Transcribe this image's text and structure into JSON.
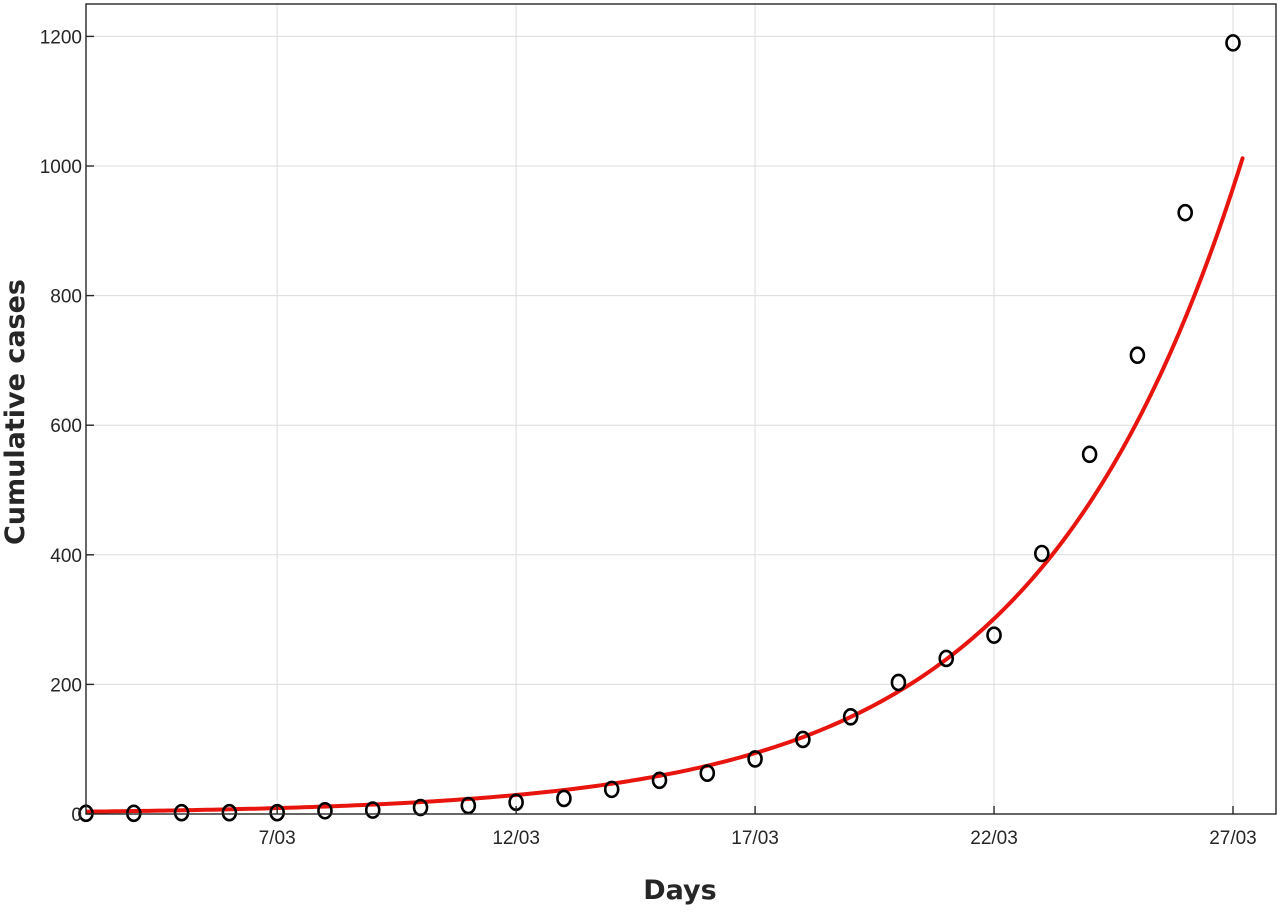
{
  "chart_data": {
    "type": "scatter",
    "title": "",
    "xlabel": "Days",
    "ylabel": "Cumulative cases",
    "x_tick_labels": [
      "7/03",
      "12/03",
      "17/03",
      "22/03",
      "27/03"
    ],
    "x_tick_days": [
      7,
      12,
      17,
      22,
      27
    ],
    "y_ticks": [
      0,
      200,
      400,
      600,
      800,
      1000,
      1200
    ],
    "xlim": [
      3,
      27.9
    ],
    "ylim": [
      0,
      1250
    ],
    "grid": true,
    "series": [
      {
        "kind": "points",
        "marker": "circle-open",
        "color": "#000000",
        "x": [
          3,
          4,
          5,
          6,
          7,
          8,
          9,
          10,
          11,
          12,
          13,
          14,
          15,
          16,
          17,
          18,
          19,
          20,
          21,
          22,
          23,
          24,
          25,
          26,
          27
        ],
        "y": [
          1,
          1,
          2,
          2,
          2,
          5,
          6,
          10,
          13,
          18,
          24,
          38,
          52,
          63,
          85,
          115,
          150,
          203,
          240,
          276,
          402,
          555,
          708,
          928,
          1190
        ]
      },
      {
        "kind": "fitted-curve",
        "color": "#e8150f",
        "model": "exponential",
        "x_range": [
          3,
          27.2
        ],
        "a": 3.6,
        "b": 0.233
      }
    ]
  }
}
